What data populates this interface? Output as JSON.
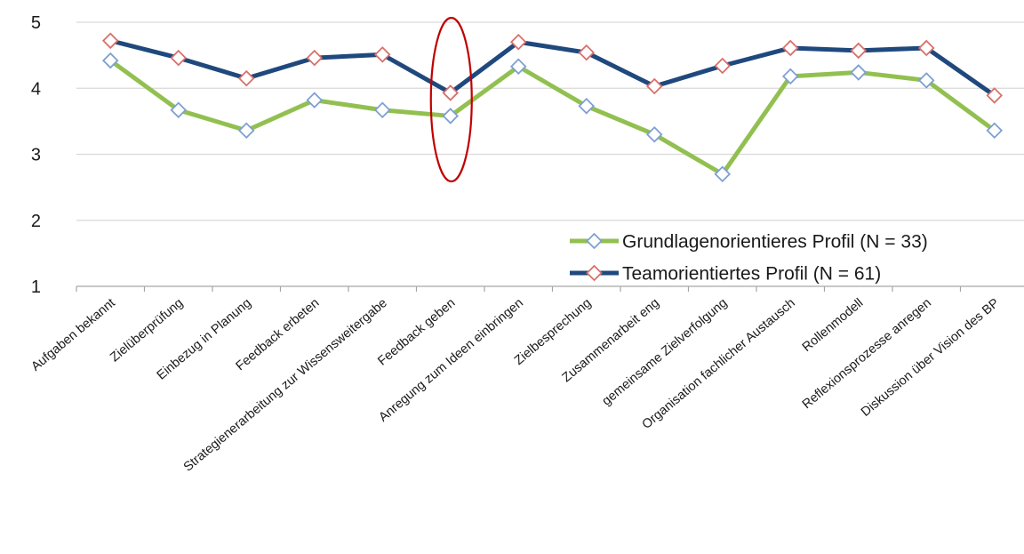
{
  "chart_data": {
    "type": "line",
    "title": "",
    "xlabel": "",
    "ylabel": "",
    "ylim": [
      1,
      5
    ],
    "yticks": [
      1,
      2,
      3,
      4,
      5
    ],
    "grid": "horizontal",
    "legend_position": "bottom-right",
    "categories": [
      "Aufgaben bekannt",
      "Zielüberprüfung",
      "Einbezug in Planung",
      "Feedback erbeten",
      "Strategienerarbeitung zur Wissensweitergabe",
      "Feedback geben",
      "Anregung zum Ideen einbringen",
      "Zielbesprechung",
      "Zusammenarbeit eng",
      "gemeinsame Zielverfolgung",
      "Organisation fachlicher Austausch",
      "Rollenmodell",
      "Reflexionsprozesse anregen",
      "Diskussion über Vision des BP"
    ],
    "series": [
      {
        "name": "Grundlagenorientieres Profil (N = 33)",
        "color": "#92c050",
        "marker_color": "#7f9fd4",
        "values": [
          4.42,
          3.67,
          3.36,
          3.82,
          3.67,
          3.58,
          4.33,
          3.73,
          3.3,
          2.7,
          4.18,
          4.24,
          4.12,
          3.36
        ]
      },
      {
        "name": "Teamorientiertes Profil (N = 61)",
        "color": "#1f497d",
        "marker_color": "#d9706a",
        "values": [
          4.72,
          4.46,
          4.15,
          4.46,
          4.51,
          3.93,
          4.7,
          4.54,
          4.03,
          4.34,
          4.61,
          4.57,
          4.61,
          3.89
        ]
      }
    ],
    "annotations": [
      {
        "type": "ellipse",
        "category_index": 5,
        "color": "#c00000"
      }
    ]
  }
}
